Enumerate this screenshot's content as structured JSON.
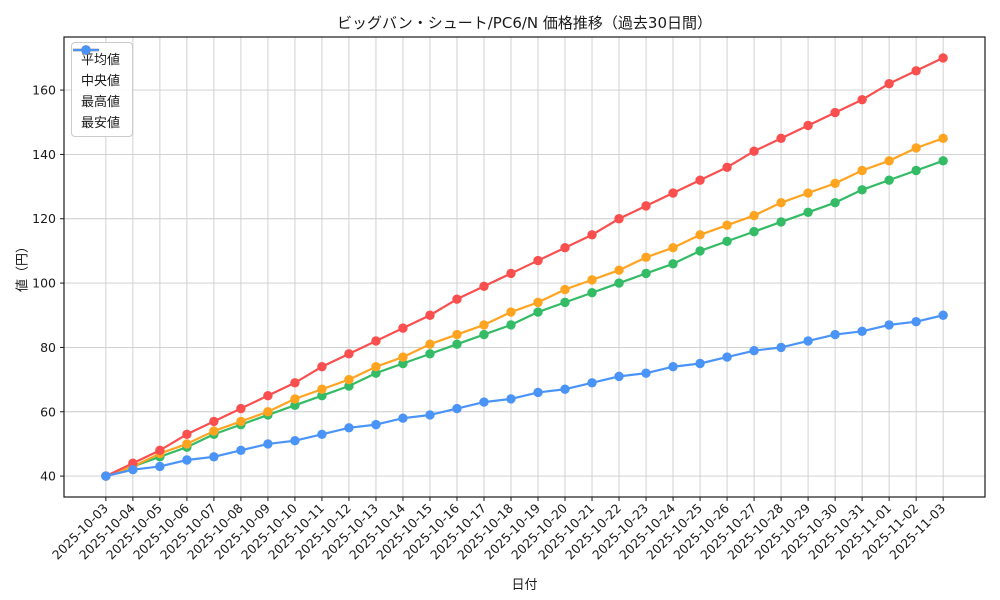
{
  "chart_data": {
    "type": "line",
    "title": "ビッグバン・シュート/PC6/N 価格推移（過去30日間）",
    "xlabel": "日付",
    "ylabel": "値（円）",
    "grid": true,
    "legend_position": "upper left",
    "ylim": [
      33.5,
      176.5
    ],
    "yticks": [
      40,
      60,
      80,
      100,
      120,
      140,
      160
    ],
    "x": [
      "2025-10-03",
      "2025-10-04",
      "2025-10-05",
      "2025-10-06",
      "2025-10-07",
      "2025-10-08",
      "2025-10-09",
      "2025-10-10",
      "2025-10-11",
      "2025-10-12",
      "2025-10-13",
      "2025-10-14",
      "2025-10-15",
      "2025-10-16",
      "2025-10-17",
      "2025-10-18",
      "2025-10-19",
      "2025-10-20",
      "2025-10-21",
      "2025-10-22",
      "2025-10-23",
      "2025-10-24",
      "2025-10-25",
      "2025-10-26",
      "2025-10-27",
      "2025-10-28",
      "2025-10-29",
      "2025-10-30",
      "2025-10-31",
      "2025-11-01",
      "2025-11-02",
      "2025-11-03"
    ],
    "series": [
      {
        "key": "average",
        "name": "平均値",
        "color": "#33bb66",
        "values": [
          40,
          43,
          46,
          49,
          53,
          56,
          59,
          62,
          65,
          68,
          72,
          75,
          78,
          81,
          84,
          87,
          91,
          94,
          97,
          100,
          103,
          106,
          110,
          113,
          116,
          119,
          122,
          125,
          129,
          132,
          135,
          138
        ]
      },
      {
        "key": "median",
        "name": "中央値",
        "color": "#ffa420",
        "values": [
          40,
          43,
          47,
          50,
          54,
          57,
          60,
          64,
          67,
          70,
          74,
          77,
          81,
          84,
          87,
          91,
          94,
          98,
          101,
          104,
          108,
          111,
          115,
          118,
          121,
          125,
          128,
          131,
          135,
          138,
          142,
          145
        ]
      },
      {
        "key": "max",
        "name": "最高値",
        "color": "#f94f4e",
        "values": [
          40,
          44,
          48,
          53,
          57,
          61,
          65,
          69,
          74,
          78,
          82,
          86,
          90,
          95,
          99,
          103,
          107,
          111,
          115,
          120,
          124,
          128,
          132,
          136,
          141,
          145,
          149,
          153,
          157,
          162,
          166,
          170
        ]
      },
      {
        "key": "min",
        "name": "最安値",
        "color": "#4b94f7",
        "values": [
          40,
          42,
          43,
          45,
          46,
          48,
          50,
          51,
          53,
          55,
          56,
          58,
          59,
          61,
          63,
          64,
          66,
          67,
          69,
          71,
          72,
          74,
          75,
          77,
          79,
          80,
          82,
          84,
          85,
          87,
          88,
          90
        ]
      }
    ],
    "colors": {
      "grid": "#cccccc",
      "spine": "#1a1a1a",
      "background": "#ffffff"
    }
  }
}
